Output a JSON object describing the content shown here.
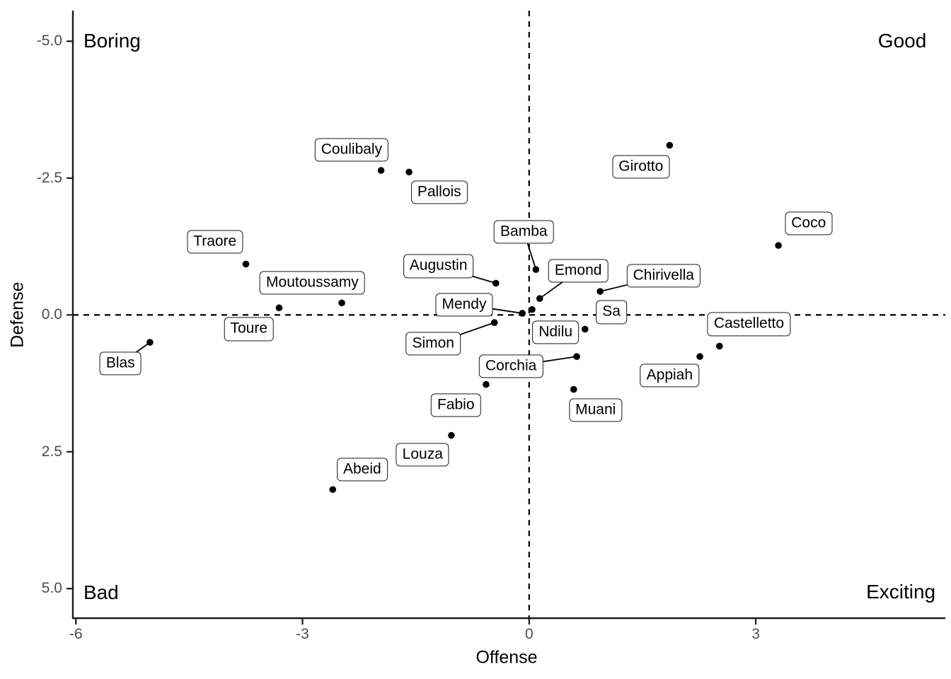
{
  "chart_data": {
    "type": "scatter",
    "title": "",
    "xlabel": "Offense",
    "ylabel": "Defense",
    "xlim": [
      -6.04,
      5.51
    ],
    "ylim": [
      -5.56,
      5.54
    ],
    "y_increases_downward": true,
    "grid": false,
    "x_ticks": [
      {
        "value": -6,
        "label": "-6"
      },
      {
        "value": -3,
        "label": "-3"
      },
      {
        "value": 0,
        "label": "0"
      },
      {
        "value": 3,
        "label": "3"
      }
    ],
    "y_ticks": [
      {
        "value": -5,
        "label": "-5.0"
      },
      {
        "value": -2.5,
        "label": "-2.5"
      },
      {
        "value": 0,
        "label": "0.0"
      },
      {
        "value": 2.5,
        "label": "2.5"
      },
      {
        "value": 5,
        "label": "5.0"
      }
    ],
    "reference_lines": [
      {
        "axis": "x",
        "value": 0,
        "style": "dashed"
      },
      {
        "axis": "y",
        "value": 0,
        "style": "dashed"
      }
    ],
    "corner_annotations": [
      {
        "text": "Boring",
        "corner": "top-left",
        "x": -5.9,
        "y": -5.0
      },
      {
        "text": "Good",
        "corner": "top-right",
        "x": 5.26,
        "y": -5.0
      },
      {
        "text": "Bad",
        "corner": "bottom-left",
        "x": -5.9,
        "y": 5.08
      },
      {
        "text": "Exciting",
        "corner": "bottom-right",
        "x": 5.38,
        "y": 5.06
      }
    ],
    "points": [
      {
        "label": "Coulibaly",
        "x": -1.96,
        "y": -2.64,
        "label_x": -2.35,
        "label_y": -3.02,
        "segment": false
      },
      {
        "label": "Pallois",
        "x": -1.59,
        "y": -2.61,
        "label_x": -1.19,
        "label_y": -2.24,
        "segment": false
      },
      {
        "label": "Girotto",
        "x": 1.86,
        "y": -3.1,
        "label_x": 1.48,
        "label_y": -2.71,
        "segment": false
      },
      {
        "label": "Coco",
        "x": 3.3,
        "y": -1.27,
        "label_x": 3.7,
        "label_y": -1.67,
        "segment": false
      },
      {
        "label": "Traore",
        "x": -3.75,
        "y": -0.93,
        "label_x": -4.16,
        "label_y": -1.33,
        "segment": false
      },
      {
        "label": "Moutoussamy",
        "x": -2.48,
        "y": -0.22,
        "label_x": -2.87,
        "label_y": -0.59,
        "segment": false
      },
      {
        "label": "Toure",
        "x": -3.31,
        "y": -0.13,
        "label_x": -3.71,
        "label_y": 0.26,
        "segment": false
      },
      {
        "label": "Blas",
        "x": -5.02,
        "y": 0.5,
        "label_x": -5.41,
        "label_y": 0.89,
        "segment": true
      },
      {
        "label": "Bamba",
        "x": 0.09,
        "y": -0.83,
        "label_x": -0.07,
        "label_y": -1.52,
        "segment": true
      },
      {
        "label": "Augustin",
        "x": -0.44,
        "y": -0.58,
        "label_x": -1.2,
        "label_y": -0.89,
        "segment": true
      },
      {
        "label": "Emond",
        "x": 0.14,
        "y": -0.3,
        "label_x": 0.65,
        "label_y": -0.81,
        "segment": true
      },
      {
        "label": "Chirivella",
        "x": 0.94,
        "y": -0.43,
        "label_x": 1.78,
        "label_y": -0.71,
        "segment": true
      },
      {
        "label": "Mendy",
        "x": -0.09,
        "y": -0.03,
        "label_x": -0.86,
        "label_y": -0.19,
        "segment": true
      },
      {
        "label": "Ndilu",
        "x": 0.04,
        "y": -0.1,
        "label_x": 0.35,
        "label_y": 0.32,
        "segment": false
      },
      {
        "label": "Sa",
        "x": 0.74,
        "y": 0.26,
        "label_x": 1.09,
        "label_y": -0.05,
        "segment": false
      },
      {
        "label": "Simon",
        "x": -0.46,
        "y": 0.14,
        "label_x": -1.27,
        "label_y": 0.53,
        "segment": true
      },
      {
        "label": "Corchia",
        "x": 0.63,
        "y": 0.76,
        "label_x": -0.24,
        "label_y": 0.94,
        "segment": true
      },
      {
        "label": "Castelletto",
        "x": 2.52,
        "y": 0.57,
        "label_x": 2.91,
        "label_y": 0.17,
        "segment": false
      },
      {
        "label": "Appiah",
        "x": 2.26,
        "y": 0.76,
        "label_x": 1.86,
        "label_y": 1.11,
        "segment": false
      },
      {
        "label": "Fabio",
        "x": -0.57,
        "y": 1.27,
        "label_x": -0.97,
        "label_y": 1.65,
        "segment": false
      },
      {
        "label": "Muani",
        "x": 0.59,
        "y": 1.36,
        "label_x": 0.88,
        "label_y": 1.74,
        "segment": false
      },
      {
        "label": "Louza",
        "x": -1.03,
        "y": 2.2,
        "label_x": -1.41,
        "label_y": 2.55,
        "segment": false
      },
      {
        "label": "Abeid",
        "x": -2.6,
        "y": 3.19,
        "label_x": -2.21,
        "label_y": 2.82,
        "segment": false
      }
    ],
    "colors": {
      "point": "#000000",
      "segment": "#000000",
      "label_fill": "#ffffff",
      "label_border": "#1a1a1a",
      "axis_line": "#1a1a1a",
      "tick_text": "#4d4d4d",
      "reference_line": "#000000"
    }
  }
}
